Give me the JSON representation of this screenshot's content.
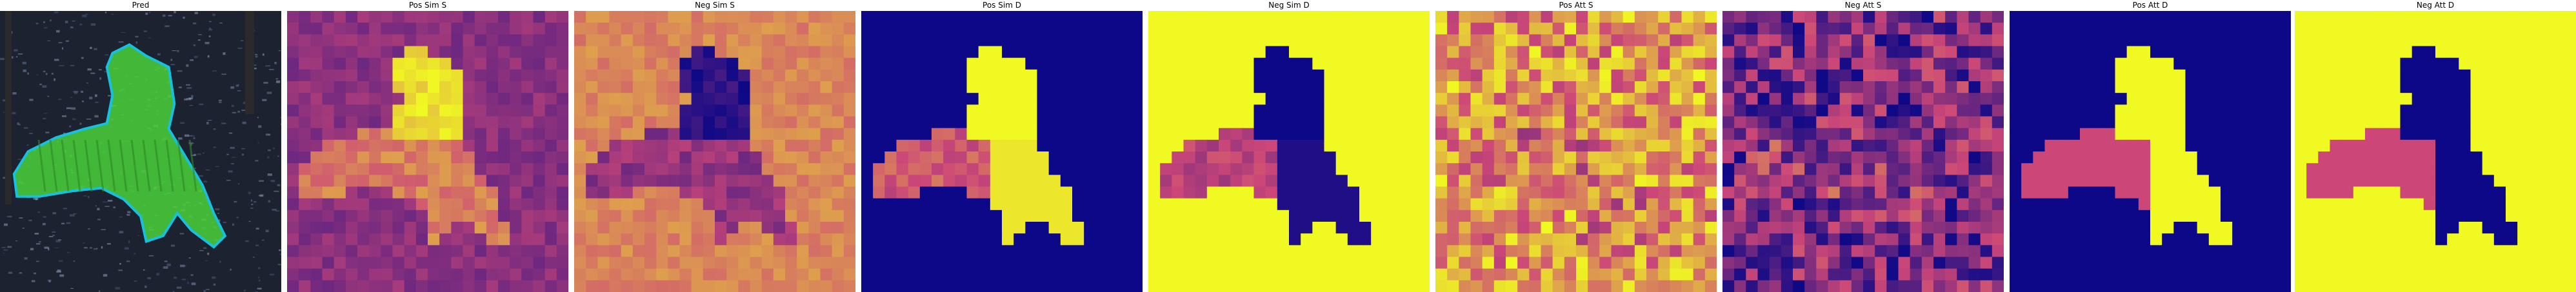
{
  "panels": [
    {
      "title": "Pred",
      "kind": "pred"
    },
    {
      "title": "Pos Sim S",
      "kind": "heat_plasma_soft"
    },
    {
      "title": "Neg Sim S",
      "kind": "heat_plasma_soft_inv"
    },
    {
      "title": "Pos Sim D",
      "kind": "heat_mask"
    },
    {
      "title": "Neg Sim D",
      "kind": "heat_mask_inv"
    },
    {
      "title": "Pos Att S",
      "kind": "heat_noise"
    },
    {
      "title": "Neg Att S",
      "kind": "heat_noise_inv"
    },
    {
      "title": "Pos Att D",
      "kind": "heat_mask_mid"
    },
    {
      "title": "Neg Att D",
      "kind": "heat_mask_mid_inv"
    }
  ],
  "colors": {
    "plasma_low": "#0d0887",
    "plasma_mid": "#cc4778",
    "plasma_high": "#f0f921",
    "pred_overlay": "#4ad13a",
    "pred_outline": "#18c0e0",
    "pred_background": "#1c2230"
  }
}
